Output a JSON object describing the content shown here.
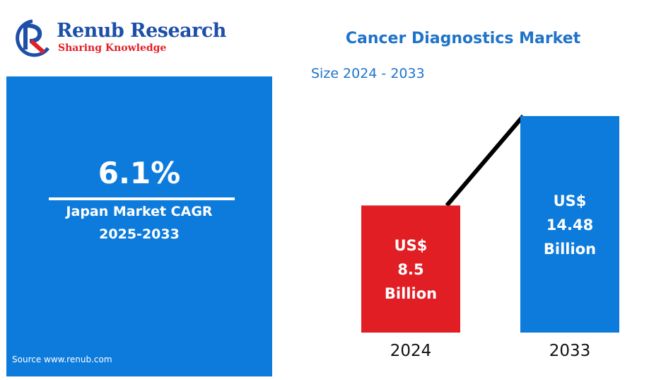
{
  "brand": {
    "name": "Renub Research",
    "tagline": "Sharing Knowledge"
  },
  "summary": {
    "cagr_value": "6.1%",
    "cagr_label_line1": "Japan Market CAGR",
    "cagr_label_line2": "2025-2033",
    "source": "Source  www.renub.com"
  },
  "chart_data": {
    "type": "bar",
    "title": "Cancer Diagnostics Market",
    "subtitle": "Size 2024 - 2033",
    "categories": [
      "2024",
      "2033"
    ],
    "values": [
      8.5,
      14.48
    ],
    "value_labels": [
      [
        "US$",
        "8.5",
        "Billion"
      ],
      [
        "US$",
        "14.48",
        "Billion"
      ]
    ],
    "colors": [
      "#e01e24",
      "#0d7bdc"
    ],
    "trend_line_color": "#000000",
    "trend_line": true,
    "grid": false,
    "legend": "none"
  }
}
